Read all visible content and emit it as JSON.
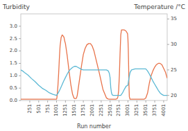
{
  "chart_data": {
    "type": "line",
    "ylabel": "Turbidity",
    "y2label": "Temperature /°C",
    "xlabel": "Run number",
    "xlim": [
      0,
      4100
    ],
    "ylim": [
      0.0,
      3.5
    ],
    "y2lim": [
      19,
      36
    ],
    "xticks": [
      251,
      501,
      751,
      1001,
      1251,
      1501,
      1751,
      2001,
      2251,
      2501,
      2751,
      3001,
      3251,
      3501,
      3751,
      4001
    ],
    "yticks": [
      {
        "value": 0.0,
        "label": "0.0"
      },
      0.5,
      {
        "value": 1.0,
        "label": "1.0"
      },
      1.5,
      {
        "value": 2.0,
        "label": "2.0"
      },
      2.5,
      {
        "value": 3.0,
        "label": "3.0"
      }
    ],
    "y2ticks": [
      20,
      25,
      30,
      35
    ],
    "grid": false,
    "series": [
      {
        "color": "#E8734A",
        "axis": "y",
        "x": [
          0,
          10,
          50,
          200,
          400,
          600,
          750,
          850,
          950,
          970,
          990,
          1000,
          1010,
          1020,
          1040,
          1060,
          1080,
          1100,
          1130,
          1160,
          1190,
          1210,
          1230,
          1250,
          1270,
          1300,
          1350,
          1400,
          1450,
          1490,
          1510,
          1520,
          1530,
          1540,
          1560,
          1580,
          1610,
          1650,
          1700,
          1750,
          1800,
          1850,
          1900,
          1950,
          2000,
          2050,
          2100,
          2200,
          2300,
          2400,
          2450,
          2490,
          2500,
          2510,
          2520,
          2530,
          2540,
          2560,
          2590,
          2620,
          2660,
          2700,
          2720,
          2740,
          2760,
          2780,
          2800,
          2820,
          2850,
          2900,
          2950,
          2990,
          3000,
          3010,
          3020,
          3030,
          3040,
          3060,
          3100,
          3150,
          3200,
          3250,
          3300,
          3350,
          3400,
          3450,
          3500,
          3550,
          3600,
          3650,
          3700,
          3750,
          3800,
          3850,
          3900,
          3950,
          4000,
          4050,
          4100
        ],
        "values": [
          0.05,
          0.05,
          0.05,
          0.05,
          0.05,
          0.05,
          0.05,
          0.05,
          0.05,
          0.05,
          0.05,
          0.05,
          0.1,
          0.25,
          0.6,
          1.1,
          1.7,
          2.2,
          2.55,
          2.65,
          2.6,
          2.55,
          2.4,
          2.3,
          2.1,
          1.8,
          1.2,
          0.65,
          0.25,
          0.1,
          0.08,
          0.08,
          0.08,
          0.08,
          0.1,
          0.2,
          0.5,
          0.9,
          1.4,
          1.85,
          2.1,
          2.25,
          2.3,
          2.3,
          2.2,
          2.0,
          1.7,
          1.1,
          0.45,
          0.1,
          0.06,
          0.05,
          0.05,
          0.05,
          0.05,
          0.05,
          0.05,
          0.05,
          0.05,
          0.05,
          0.05,
          0.08,
          0.15,
          0.4,
          1.0,
          1.9,
          2.65,
          2.85,
          2.85,
          2.85,
          2.8,
          2.7,
          2.5,
          2.1,
          1.4,
          0.6,
          0.15,
          0.05,
          0.05,
          0.05,
          0.05,
          0.05,
          0.05,
          0.05,
          0.05,
          0.05,
          0.1,
          0.3,
          0.7,
          1.0,
          1.2,
          1.35,
          1.45,
          1.5,
          1.5,
          1.45,
          1.3,
          1.15,
          0.9
        ]
      },
      {
        "color": "#5BB8D4",
        "axis": "y2",
        "x": [
          0,
          50,
          100,
          200,
          300,
          400,
          500,
          600,
          700,
          800,
          900,
          1000,
          1050,
          1100,
          1150,
          1200,
          1250,
          1300,
          1350,
          1400,
          1450,
          1500,
          1550,
          1600,
          1650,
          1700,
          1750,
          1800,
          1900,
          2000,
          2100,
          2200,
          2300,
          2400,
          2450,
          2480,
          2500,
          2510,
          2520,
          2540,
          2560,
          2590,
          2630,
          2680,
          2720,
          2760,
          2800,
          2850,
          2900,
          2950,
          3000,
          3010,
          3020,
          3040,
          3060,
          3100,
          3200,
          3300,
          3400,
          3500,
          3550,
          3600,
          3650,
          3700,
          3750,
          3800,
          3850,
          3900,
          3950,
          4000,
          4050,
          4100
        ],
        "values": [
          25.0,
          24.8,
          24.5,
          24.0,
          23.3,
          22.7,
          22.0,
          21.4,
          21.0,
          20.5,
          20.2,
          20.0,
          20.5,
          21.2,
          22.0,
          22.8,
          23.5,
          24.2,
          24.8,
          25.2,
          25.5,
          25.7,
          25.7,
          25.5,
          25.3,
          25.1,
          25.0,
          25.0,
          25.0,
          25.0,
          25.0,
          25.0,
          25.0,
          25.0,
          24.8,
          24.3,
          23.5,
          22.5,
          21.5,
          20.5,
          20.1,
          20.0,
          20.0,
          20.0,
          20.0,
          20.0,
          20.0,
          20.5,
          21.2,
          21.8,
          22.0,
          22.5,
          23.0,
          23.8,
          24.5,
          25.0,
          25.2,
          25.2,
          25.2,
          25.2,
          24.8,
          24.2,
          23.5,
          22.8,
          22.2,
          21.6,
          21.0,
          20.5,
          20.2,
          20.0,
          20.0,
          20.0
        ]
      }
    ]
  }
}
